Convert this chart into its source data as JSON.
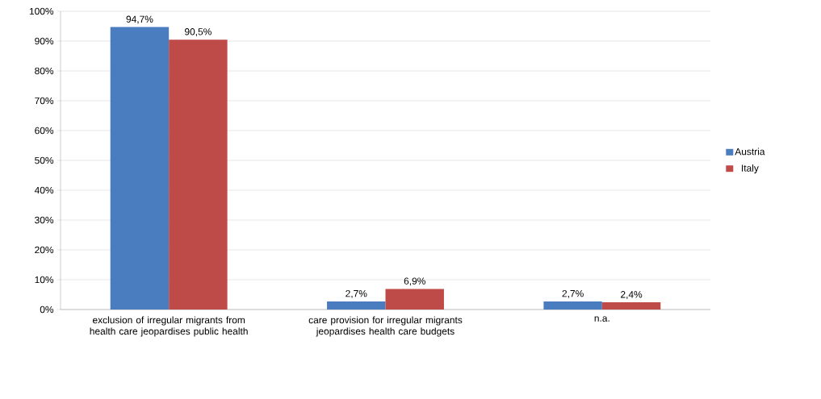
{
  "chart_data": {
    "type": "bar",
    "categories": [
      "exclusion of irregular migrants from health care jeopardises public health",
      "care provision for irregular migrants jeopardises health care budgets",
      "n.a."
    ],
    "series": [
      {
        "name": "Austria",
        "color": "#4a7cc0",
        "values": [
          94.7,
          2.7,
          2.7
        ],
        "value_labels": [
          "94,7%",
          "2,7%",
          "2,7%"
        ]
      },
      {
        "name": "Italy",
        "color": "#bf4b48",
        "values": [
          90.5,
          6.9,
          2.4
        ],
        "value_labels": [
          "90,5%",
          "6,9%",
          "2,4%"
        ]
      }
    ],
    "ylim": [
      0,
      100
    ],
    "yticks": [
      {
        "value": 0,
        "label": "0%"
      },
      {
        "value": 10,
        "label": "10%"
      },
      {
        "value": 20,
        "label": "20%"
      },
      {
        "value": 30,
        "label": "30%"
      },
      {
        "value": 40,
        "label": "40%"
      },
      {
        "value": 50,
        "label": "50%"
      },
      {
        "value": 60,
        "label": "60%"
      },
      {
        "value": 70,
        "label": "70%"
      },
      {
        "value": 80,
        "label": "80%"
      },
      {
        "value": 90,
        "label": "90%"
      },
      {
        "value": 100,
        "label": "100%"
      }
    ],
    "grid": "y",
    "legend": "right"
  }
}
